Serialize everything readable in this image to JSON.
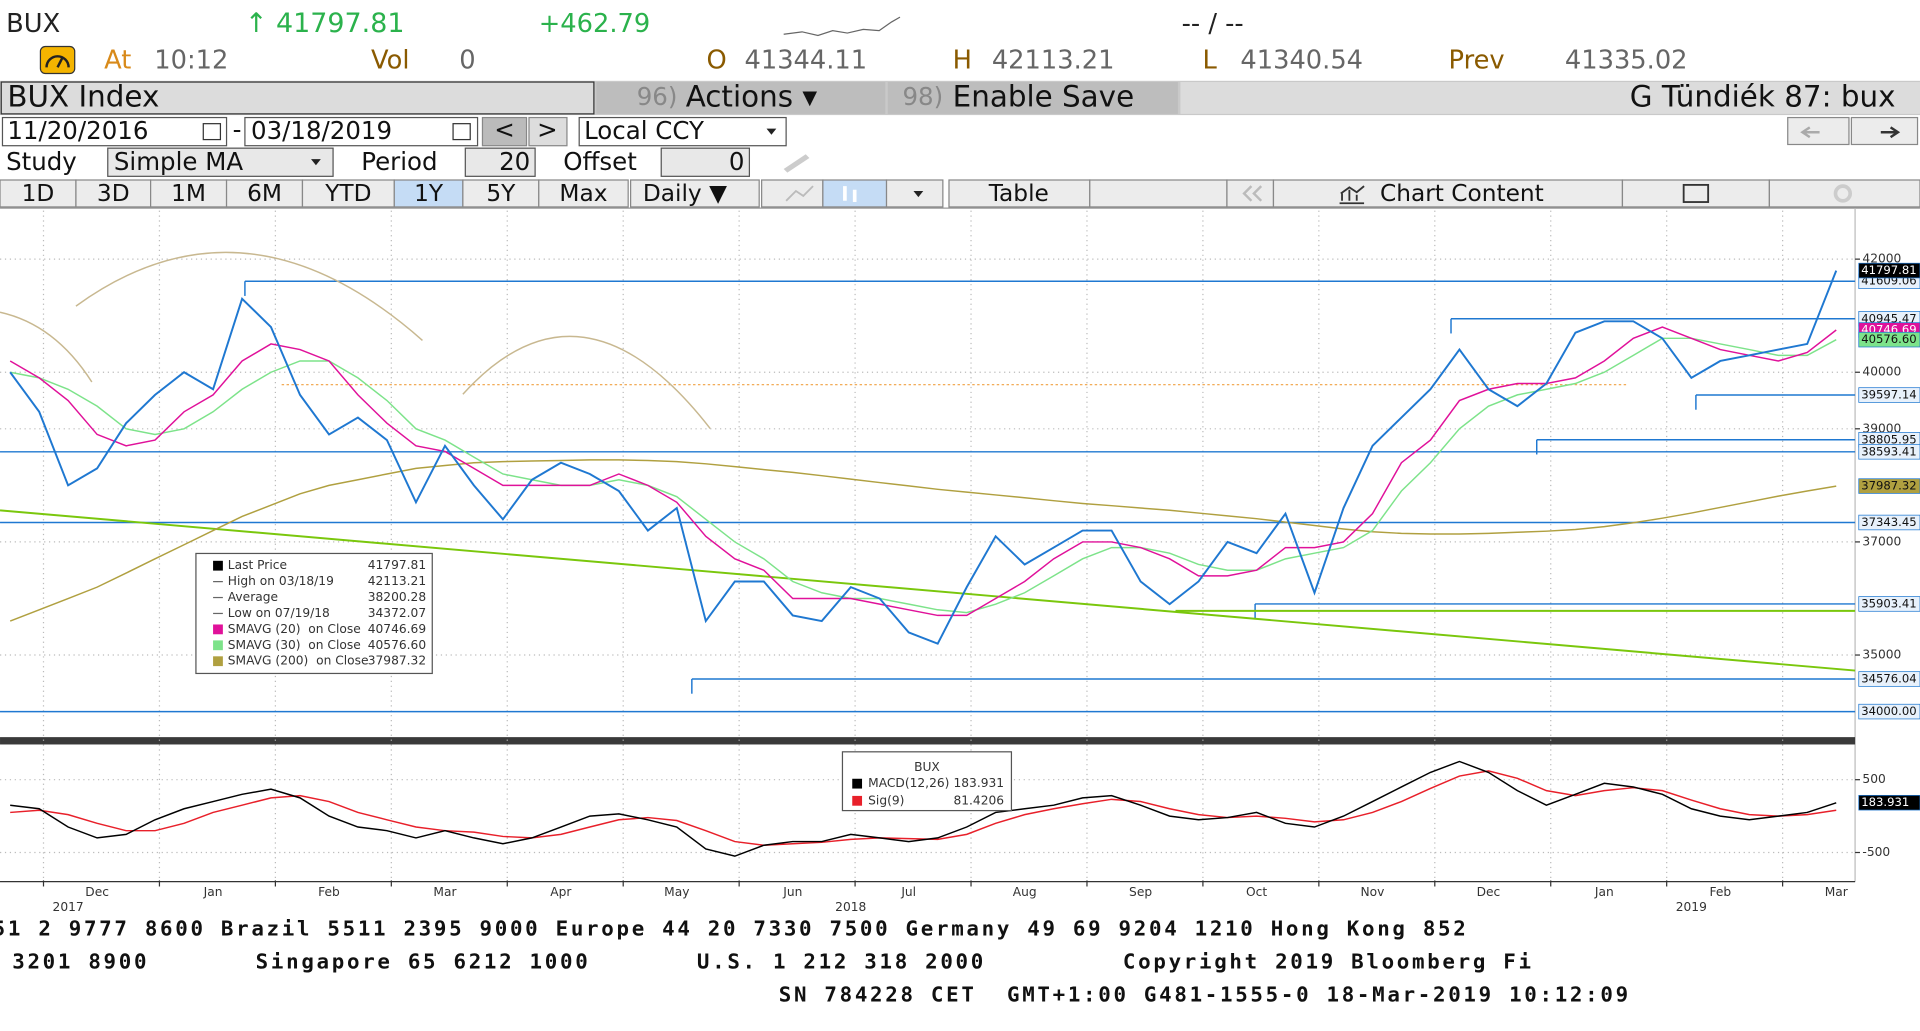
{
  "header": {
    "ticker": "BUX",
    "last": "↑ 41797.81",
    "change": "+462.79",
    "bidask": "-- / --",
    "at_label": "At",
    "time": "10:12",
    "vol_label": "Vol",
    "vol": "0",
    "open_label": "O",
    "open": "41344.11",
    "high_label": "H",
    "high": "42113.21",
    "low_label": "L",
    "low": "41340.54",
    "prev_label": "Prev",
    "prev": "41335.02"
  },
  "toolbar": {
    "security": "BUX Index",
    "actions_num": "96)",
    "actions": "Actions ▾",
    "save_num": "98)",
    "save": "Enable Save",
    "user": "G Tündiék 87: bux",
    "start_date": "11/20/2016",
    "dash": "-",
    "end_date": "03/18/2019",
    "prev_btn": "<",
    "next_btn": ">",
    "currency": "Local CCY",
    "study_label": "Study",
    "study": "Simple MA",
    "period_label": "Period",
    "period": "20",
    "offset_label": "Offset",
    "offset": "0",
    "ranges": [
      "1D",
      "3D",
      "1M",
      "6M",
      "YTD",
      "1Y",
      "5Y",
      "Max"
    ],
    "frequency": "Daily ▼",
    "table": "Table",
    "chart_content": "Chart Content"
  },
  "chart_data": [
    {
      "type": "line",
      "categories": [
        null,
        null,
        null,
        "Dec",
        null,
        null,
        null,
        "Jan",
        null,
        null,
        null,
        "Feb",
        null,
        null,
        null,
        "Mar",
        null,
        null,
        null,
        "Apr",
        null,
        null,
        null,
        "May",
        null,
        null,
        null,
        "Jun",
        null,
        null,
        null,
        "Jul",
        null,
        null,
        null,
        "Aug",
        null,
        null,
        null,
        "Sep",
        null,
        null,
        null,
        "Oct",
        null,
        null,
        null,
        "Nov",
        null,
        null,
        null,
        "Dec",
        null,
        null,
        null,
        "Jan",
        null,
        null,
        null,
        "Feb",
        null,
        null,
        null,
        "Mar"
      ],
      "year_categories": [
        null,
        null,
        "2017",
        null,
        null,
        null,
        null,
        null,
        null,
        null,
        null,
        null,
        null,
        null,
        null,
        null,
        null,
        null,
        null,
        null,
        null,
        null,
        null,
        null,
        null,
        null,
        null,
        null,
        null,
        "2018",
        null,
        null,
        null,
        null,
        null,
        null,
        null,
        null,
        null,
        null,
        null,
        null,
        null,
        null,
        null,
        null,
        null,
        null,
        null,
        null,
        null,
        null,
        null,
        null,
        null,
        null,
        null,
        null,
        "2019",
        null,
        null,
        null,
        null,
        null
      ],
      "ylim": [
        33635,
        42858
      ],
      "yticks": [
        35000,
        37000,
        39000,
        40000,
        42000
      ],
      "grid": true,
      "series": [
        {
          "name": "Last Price",
          "legend_value": "41797.81",
          "color": "#1f78d1",
          "legend_color": "#000000",
          "values": [
            40000,
            39300,
            38000,
            38300,
            39100,
            39600,
            40000,
            39700,
            41300,
            40800,
            39600,
            38900,
            39200,
            38800,
            37700,
            38700,
            38000,
            37400,
            38100,
            38400,
            38200,
            37900,
            37200,
            37600,
            35600,
            36300,
            36300,
            35700,
            35600,
            36200,
            36000,
            35400,
            35200,
            36200,
            37100,
            36600,
            36900,
            37200,
            37200,
            36300,
            35900,
            36300,
            37000,
            36800,
            37500,
            36100,
            37600,
            38700,
            39200,
            39700,
            40400,
            39700,
            39400,
            39800,
            40700,
            40900,
            40900,
            40600,
            39900,
            40200,
            40300,
            40400,
            40500,
            41797.81
          ]
        },
        {
          "name": "SMAVG (20)  on Close",
          "legend_value": "40746.69",
          "color": "#e0119a",
          "values": [
            40200,
            39900,
            39500,
            38900,
            38700,
            38800,
            39300,
            39600,
            40200,
            40500,
            40400,
            40200,
            39600,
            39100,
            38700,
            38600,
            38300,
            38000,
            38000,
            38000,
            38000,
            38200,
            38000,
            37700,
            37100,
            36700,
            36500,
            36000,
            36000,
            36000,
            35900,
            35800,
            35700,
            35700,
            36000,
            36300,
            36700,
            37000,
            37000,
            36900,
            36700,
            36400,
            36400,
            36500,
            36900,
            36900,
            37000,
            37500,
            38400,
            38800,
            39500,
            39700,
            39800,
            39800,
            39900,
            40200,
            40600,
            40800,
            40600,
            40400,
            40300,
            40200,
            40350,
            40746.69
          ]
        },
        {
          "name": "SMAVG (30)  on Close",
          "legend_value": "40576.60",
          "color": "#7de38a",
          "values": [
            40000,
            39900,
            39700,
            39400,
            39000,
            38900,
            39000,
            39300,
            39700,
            40000,
            40200,
            40200,
            39900,
            39500,
            39000,
            38800,
            38500,
            38200,
            38100,
            38000,
            38000,
            38100,
            38000,
            37800,
            37400,
            37000,
            36700,
            36300,
            36100,
            36000,
            36000,
            35900,
            35800,
            35750,
            35900,
            36100,
            36400,
            36700,
            36900,
            36900,
            36800,
            36600,
            36500,
            36500,
            36700,
            36800,
            36900,
            37200,
            37900,
            38400,
            39000,
            39400,
            39600,
            39700,
            39800,
            40000,
            40300,
            40600,
            40600,
            40500,
            40400,
            40300,
            40300,
            40576.6
          ]
        },
        {
          "name": "SMAVG (200)  on Close",
          "legend_value": "37987.32",
          "color": "#b0a040",
          "values": [
            35600,
            35800,
            36000,
            36200,
            36450,
            36700,
            36950,
            37200,
            37450,
            37650,
            37850,
            38000,
            38100,
            38200,
            38300,
            38350,
            38400,
            38420,
            38430,
            38440,
            38450,
            38450,
            38440,
            38420,
            38380,
            38330,
            38280,
            38230,
            38170,
            38110,
            38050,
            37990,
            37930,
            37880,
            37830,
            37780,
            37730,
            37680,
            37640,
            37600,
            37560,
            37510,
            37460,
            37410,
            37350,
            37290,
            37230,
            37180,
            37150,
            37140,
            37140,
            37150,
            37170,
            37190,
            37220,
            37270,
            37340,
            37420,
            37510,
            37610,
            37710,
            37810,
            37900,
            37987.32
          ]
        }
      ],
      "stats": [
        {
          "label": "High on 03/18/19",
          "value": "42113.21"
        },
        {
          "label": "Average",
          "value": "38200.28"
        },
        {
          "label": "Low on 07/19/18",
          "value": "34372.07"
        }
      ],
      "levels": [
        {
          "value": 41609.06,
          "label": "41609.06"
        },
        {
          "value": 40945.47,
          "label": "40945.47"
        },
        {
          "value": 39597.14,
          "label": "39597.14"
        },
        {
          "value": 38805.95,
          "label": "38805.95"
        },
        {
          "value": 38593.41,
          "label": "38593.41"
        },
        {
          "value": 37343.45,
          "label": "37343.45"
        },
        {
          "value": 35903.41,
          "label": "35903.41"
        },
        {
          "value": 34576.04,
          "label": "34576.04"
        },
        {
          "value": 34000,
          "label": "34000.00"
        }
      ],
      "level_color": "#1f78d1",
      "price_tags": [
        {
          "value": 41797.81,
          "label": "41797.81",
          "color": "#000000"
        },
        {
          "value": 40746.69,
          "label": "40746.69",
          "color": "#e0119a"
        },
        {
          "value": 40576.6,
          "label": "40576.60",
          "color": "#7de38a"
        },
        {
          "value": 37987.32,
          "label": "37987.32",
          "color": "#b0a040"
        }
      ],
      "trendlines": [
        {
          "values": [
            37558,
            34725
          ],
          "color": "#7ac70c"
        },
        {
          "values": [
            35780,
            35780
          ],
          "color": "#7ac70c"
        },
        {
          "values": [
            39780,
            39780
          ],
          "color": "#f0a040"
        }
      ]
    },
    {
      "type": "line",
      "title": "BUX",
      "ylim": [
        -883,
        950
      ],
      "yticks": [
        500,
        -500
      ],
      "series": [
        {
          "name": "MACD(12,26)",
          "legend_value": "183.931",
          "color": "#000000",
          "values": [
            150,
            100,
            -150,
            -300,
            -250,
            -50,
            100,
            200,
            300,
            370,
            250,
            0,
            -150,
            -200,
            -300,
            -200,
            -300,
            -380,
            -300,
            -150,
            0,
            30,
            -50,
            -150,
            -450,
            -550,
            -400,
            -350,
            -350,
            -250,
            -300,
            -350,
            -300,
            -150,
            50,
            100,
            150,
            250,
            280,
            150,
            0,
            -50,
            -20,
            50,
            -100,
            -150,
            0,
            200,
            400,
            600,
            750,
            600,
            350,
            150,
            300,
            450,
            400,
            300,
            100,
            0,
            -50,
            0,
            50,
            183.931
          ]
        },
        {
          "name": "Sig(9)",
          "legend_value": "81.4206",
          "color": "#e8202a",
          "values": [
            50,
            80,
            20,
            -100,
            -200,
            -200,
            -100,
            50,
            150,
            250,
            280,
            200,
            50,
            -50,
            -150,
            -200,
            -220,
            -280,
            -300,
            -250,
            -150,
            -50,
            -20,
            -60,
            -200,
            -350,
            -400,
            -380,
            -360,
            -320,
            -300,
            -310,
            -320,
            -250,
            -100,
            20,
            100,
            170,
            230,
            200,
            100,
            20,
            -20,
            0,
            -30,
            -80,
            -50,
            50,
            200,
            380,
            550,
            620,
            520,
            350,
            280,
            350,
            390,
            350,
            220,
            100,
            20,
            0,
            20,
            81.4206
          ]
        }
      ],
      "price_tags": [
        {
          "value": 183.931,
          "label": "183.931",
          "color": "#000000"
        }
      ]
    }
  ],
  "footer": {
    "lines": [
      "51 2 9777 8600 Brazil 5511 2395 9000 Europe 44 20 7330 7500 Germany 49 69 9204 1210 Hong Kong 852",
      "3201 8900       Singapore 65 6212 1000       U.S. 1 212 318 2000         Copyright 2019 Bloomberg Fi",
      "SN 784228 CET  GMT+1:00 G481-1555-0 18-Mar-2019 10:12:09"
    ]
  }
}
